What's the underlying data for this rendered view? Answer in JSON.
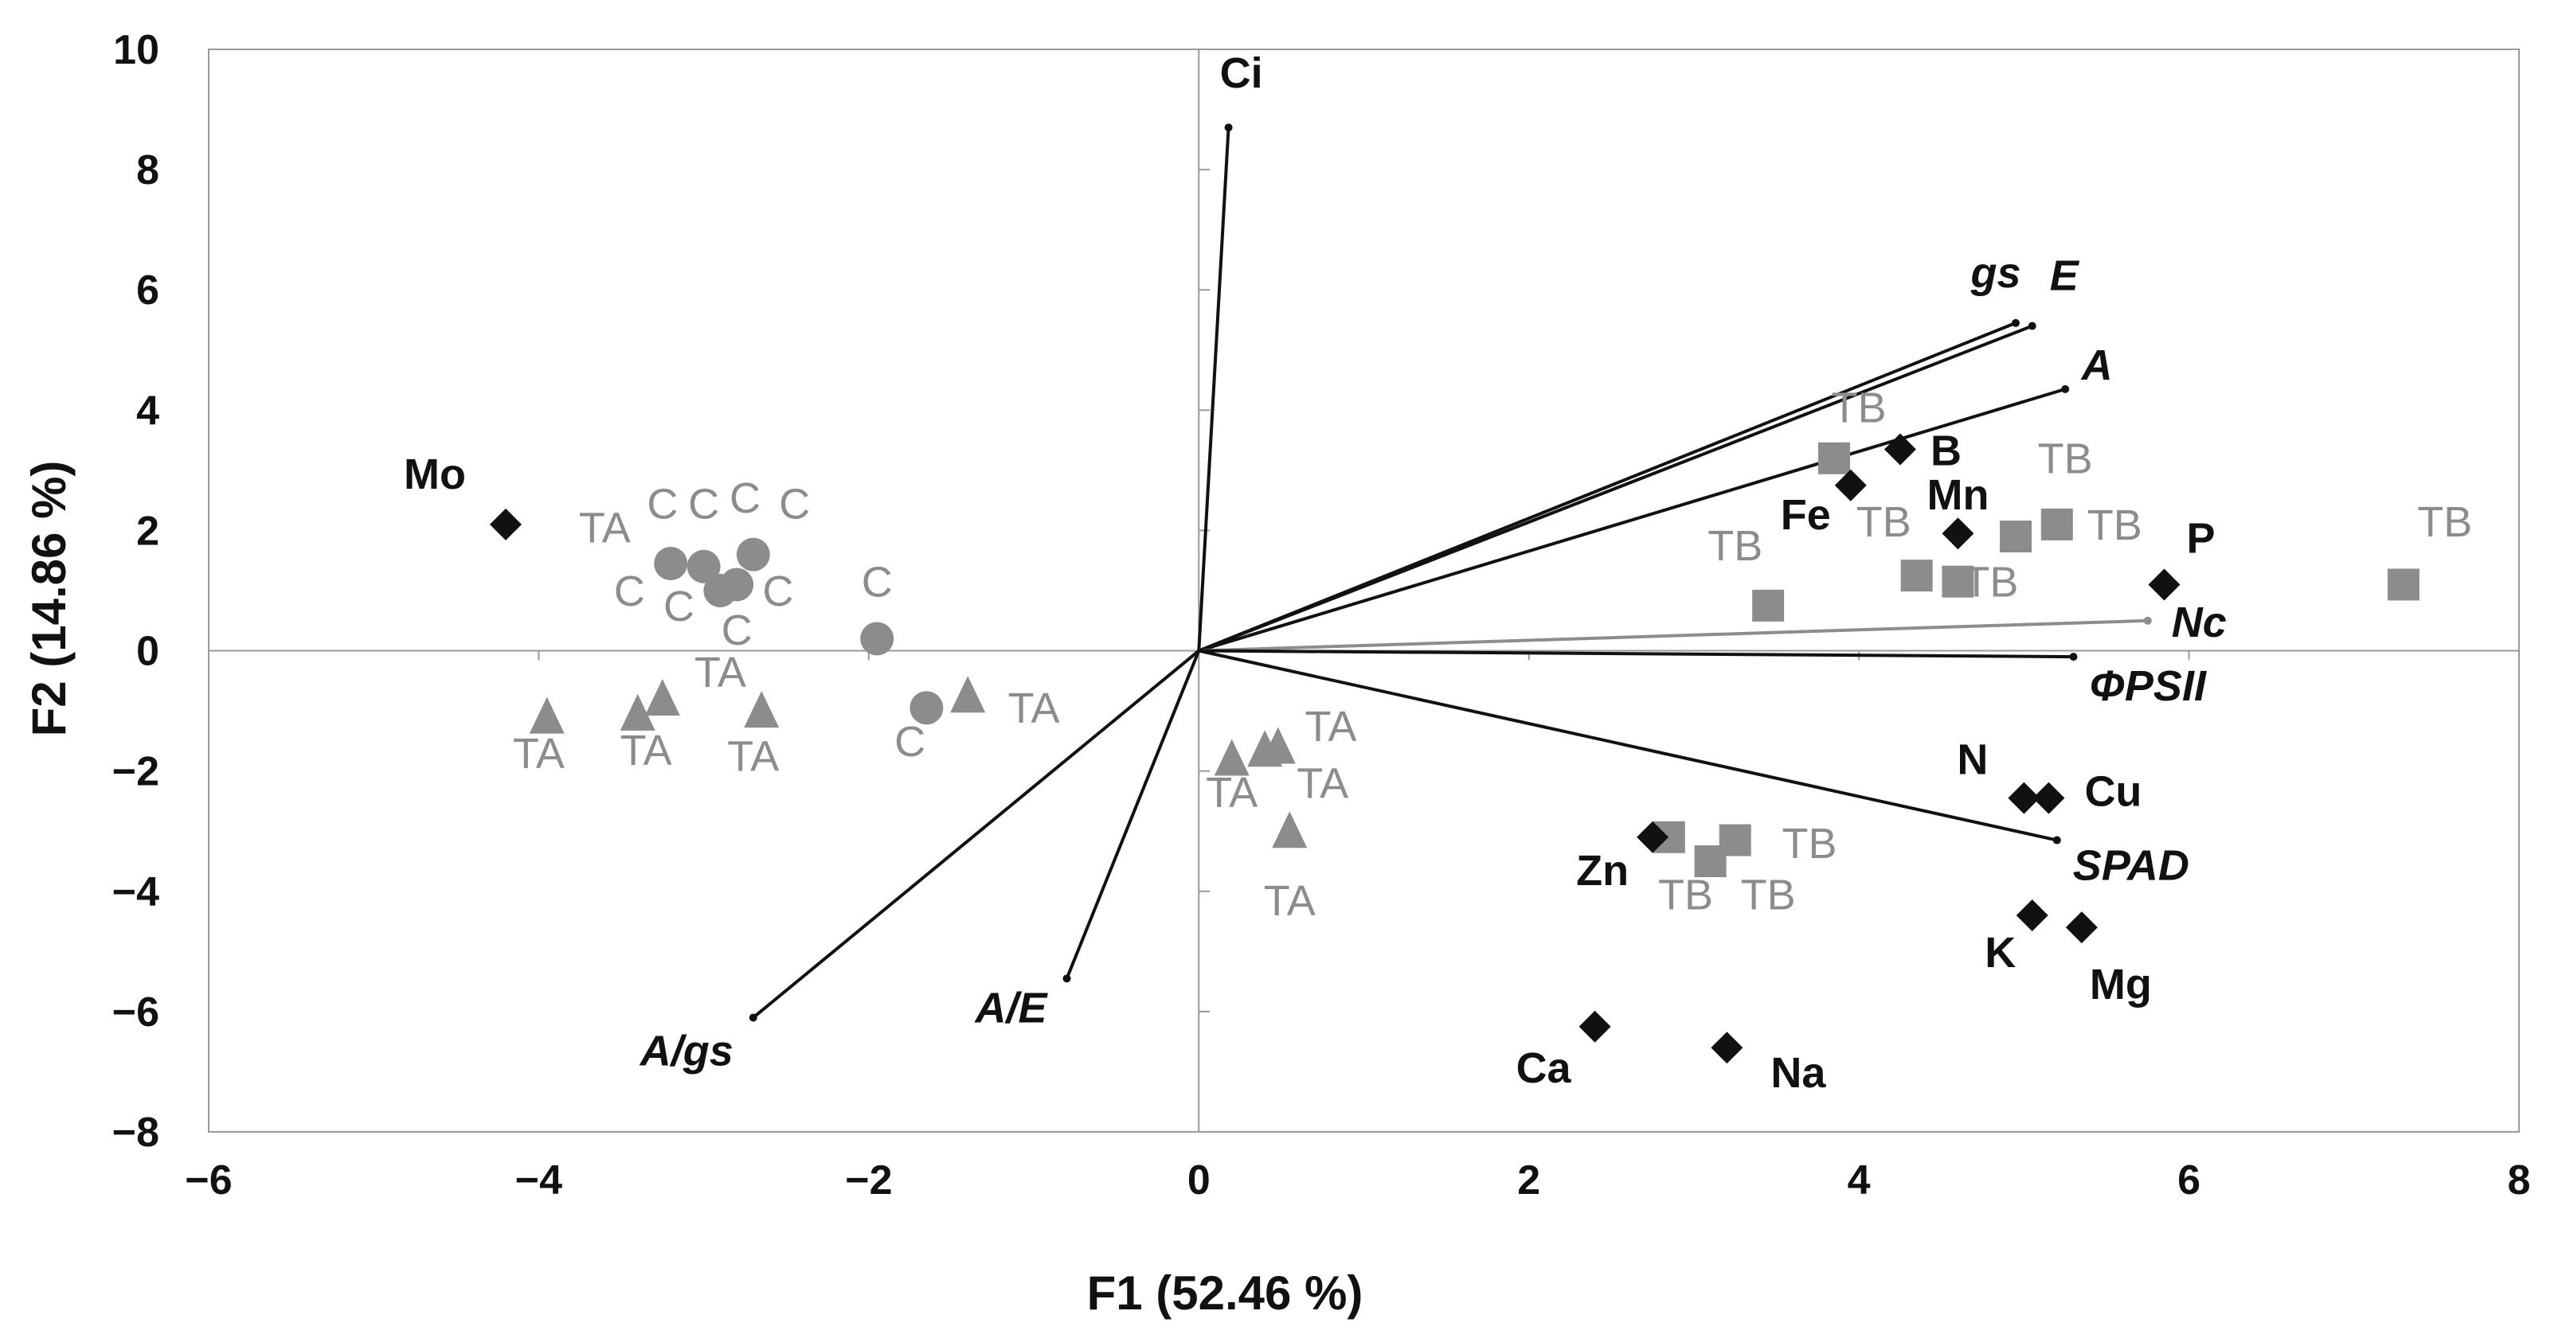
{
  "chart_data": {
    "type": "scatter",
    "subtype": "pca-biplot",
    "title": "",
    "xlabel": "F1 (52.46 %)",
    "ylabel": "F2 (14.86 %)",
    "xlim": [
      -6,
      8
    ],
    "ylim": [
      -8,
      10
    ],
    "xticks": [
      -6,
      -4,
      -2,
      0,
      2,
      4,
      6,
      8
    ],
    "yticks": [
      -8,
      -6,
      -4,
      -2,
      0,
      2,
      4,
      6,
      8,
      10
    ],
    "xtick_labels": [
      "−6",
      "−4",
      "−2",
      "0",
      "2",
      "4",
      "6",
      "8"
    ],
    "ytick_labels": [
      "−8",
      "−6",
      "−4",
      "−2",
      "0",
      "2",
      "4",
      "6",
      "8",
      "10"
    ],
    "colors": {
      "axis": "#9a9a9a",
      "vector": "#111111",
      "grey_vector": "#8c8c8c",
      "obs": "#8c8c8c",
      "element": "#111111"
    },
    "vectors": [
      {
        "name": "Ci",
        "x": 0.18,
        "y": 8.7,
        "italic": false,
        "color": "#111111"
      },
      {
        "name": "gs",
        "x": 4.95,
        "y": 5.45,
        "italic": true,
        "color": "#111111"
      },
      {
        "name": "E",
        "x": 5.05,
        "y": 5.4,
        "italic": true,
        "color": "#111111"
      },
      {
        "name": "A",
        "x": 5.25,
        "y": 4.35,
        "italic": true,
        "color": "#111111"
      },
      {
        "name": "Nc",
        "x": 5.75,
        "y": 0.5,
        "italic": true,
        "color": "#8c8c8c"
      },
      {
        "name": "ΦPSII",
        "x": 5.3,
        "y": -0.1,
        "italic": true,
        "color": "#111111"
      },
      {
        "name": "SPAD",
        "x": 5.2,
        "y": -3.15,
        "italic": true,
        "color": "#111111"
      },
      {
        "name": "A/gs",
        "x": -2.7,
        "y": -6.1,
        "italic": true,
        "color": "#111111"
      },
      {
        "name": "A/E",
        "x": -0.8,
        "y": -5.45,
        "italic": true,
        "color": "#111111"
      }
    ],
    "elements": [
      {
        "name": "Mo",
        "x": -4.2,
        "y": 2.1
      },
      {
        "name": "B",
        "x": 4.25,
        "y": 3.35
      },
      {
        "name": "Fe",
        "x": 3.95,
        "y": 2.75
      },
      {
        "name": "Mn",
        "x": 4.6,
        "y": 1.95
      },
      {
        "name": "P",
        "x": 5.85,
        "y": 1.1
      },
      {
        "name": "N",
        "x": 5.0,
        "y": -2.45
      },
      {
        "name": "Cu",
        "x": 5.15,
        "y": -2.45
      },
      {
        "name": "Zn",
        "x": 2.75,
        "y": -3.1
      },
      {
        "name": "K",
        "x": 5.05,
        "y": -4.4
      },
      {
        "name": "Mg",
        "x": 5.35,
        "y": -4.6
      },
      {
        "name": "Ca",
        "x": 2.4,
        "y": -6.25
      },
      {
        "name": "Na",
        "x": 3.2,
        "y": -6.6
      }
    ],
    "series": [
      {
        "name": "C",
        "marker": "circle",
        "points": [
          {
            "x": -3.2,
            "y": 1.45
          },
          {
            "x": -3.0,
            "y": 1.4
          },
          {
            "x": -2.8,
            "y": 1.1
          },
          {
            "x": -2.7,
            "y": 1.6
          },
          {
            "x": -2.9,
            "y": 1.0
          },
          {
            "x": -1.95,
            "y": 0.2
          },
          {
            "x": -1.65,
            "y": -0.95
          }
        ],
        "labels": [
          {
            "text": "C",
            "x": -3.25,
            "y": 2.2
          },
          {
            "text": "C",
            "x": -3.0,
            "y": 2.2
          },
          {
            "text": "C",
            "x": -2.75,
            "y": 2.3
          },
          {
            "text": "C",
            "x": -2.45,
            "y": 2.2
          },
          {
            "text": "C",
            "x": -3.45,
            "y": 0.75
          },
          {
            "text": "C",
            "x": -3.15,
            "y": 0.5
          },
          {
            "text": "C",
            "x": -2.55,
            "y": 0.75
          },
          {
            "text": "C",
            "x": -2.8,
            "y": 0.1
          },
          {
            "text": "C",
            "x": -1.95,
            "y": 0.9
          },
          {
            "text": "C",
            "x": -1.75,
            "y": -1.75
          }
        ]
      },
      {
        "name": "TA",
        "marker": "triangle",
        "points": [
          {
            "x": -3.95,
            "y": -1.1
          },
          {
            "x": -3.4,
            "y": -1.05
          },
          {
            "x": -3.25,
            "y": -0.8
          },
          {
            "x": -2.65,
            "y": -1.0
          },
          {
            "x": -1.4,
            "y": -0.75
          },
          {
            "x": 0.2,
            "y": -1.8
          },
          {
            "x": 0.4,
            "y": -1.65
          },
          {
            "x": 0.48,
            "y": -1.6
          },
          {
            "x": 0.55,
            "y": -3.0
          }
        ],
        "labels": [
          {
            "text": "TA",
            "x": -3.6,
            "y": 1.8
          },
          {
            "text": "TA",
            "x": -4.0,
            "y": -1.95
          },
          {
            "text": "TA",
            "x": -3.35,
            "y": -1.9
          },
          {
            "text": "TA",
            "x": -2.9,
            "y": -0.6
          },
          {
            "text": "TA",
            "x": -2.7,
            "y": -2.0
          },
          {
            "text": "TA",
            "x": -1.0,
            "y": -1.2
          },
          {
            "text": "TA",
            "x": 0.8,
            "y": -1.5
          },
          {
            "text": "TA",
            "x": 0.2,
            "y": -2.6
          },
          {
            "text": "TA",
            "x": 0.75,
            "y": -2.45
          },
          {
            "text": "TA",
            "x": 0.55,
            "y": -4.4
          }
        ]
      },
      {
        "name": "TB",
        "marker": "square",
        "points": [
          {
            "x": 3.85,
            "y": 3.2
          },
          {
            "x": 4.95,
            "y": 1.9
          },
          {
            "x": 5.2,
            "y": 2.1
          },
          {
            "x": 4.35,
            "y": 1.25
          },
          {
            "x": 4.6,
            "y": 1.15
          },
          {
            "x": 3.45,
            "y": 0.75
          },
          {
            "x": 7.3,
            "y": 1.1
          },
          {
            "x": 2.85,
            "y": -3.1
          },
          {
            "x": 3.1,
            "y": -3.5
          },
          {
            "x": 3.25,
            "y": -3.15
          }
        ],
        "labels": [
          {
            "text": "TB",
            "x": 4.0,
            "y": 3.8
          },
          {
            "text": "TB",
            "x": 5.25,
            "y": 2.95
          },
          {
            "text": "TB",
            "x": 4.15,
            "y": 1.9
          },
          {
            "text": "TB",
            "x": 5.55,
            "y": 1.85
          },
          {
            "text": "TB",
            "x": 3.25,
            "y": 1.5
          },
          {
            "text": "TB",
            "x": 4.8,
            "y": 0.9
          },
          {
            "text": "TB",
            "x": 7.55,
            "y": 1.9
          },
          {
            "text": "TB",
            "x": 3.7,
            "y": -3.45
          },
          {
            "text": "TB",
            "x": 2.95,
            "y": -4.3
          },
          {
            "text": "TB",
            "x": 3.45,
            "y": -4.3
          }
        ]
      }
    ]
  }
}
